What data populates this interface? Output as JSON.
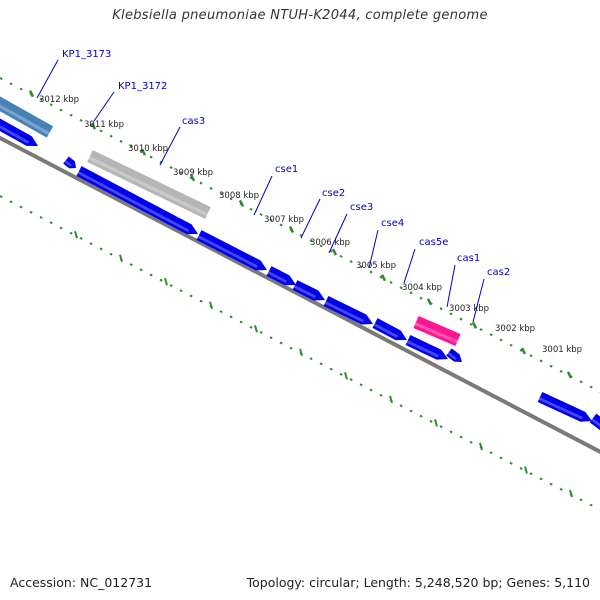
{
  "title": "Klebsiella pneumoniae NTUH-K2044, complete genome",
  "footer": {
    "accession": "Accession: NC_012731",
    "topology": "Topology: circular; Length: 5,248,520 bp; Genes: 5,110"
  },
  "colors": {
    "backbone": "#7a7a7a",
    "tick": "#2e8b2e",
    "gene_forward": "#0000ee",
    "gene_hypothetical": "#b5b5b5",
    "gene_highlight": "#ff1493",
    "gene_partial": "#4682b4",
    "label_line": "#0000cc",
    "label_text": "#0000cc",
    "tick_label": "#222222"
  },
  "scale_labels": [
    "3012 kbp",
    "3011 kbp",
    "3010 kbp",
    "3009 kbp",
    "3008 kbp",
    "3007 kbp",
    "3006 kbp",
    "3005 kbp",
    "3004 kbp",
    "3003 kbp",
    "3002 kbp",
    "3001 kbp"
  ],
  "gene_labels": [
    "KP1_3173",
    "KP1_3172",
    "cas3",
    "cse1",
    "cse2",
    "cse3",
    "cse4",
    "cas5e",
    "cas1",
    "cas2"
  ]
}
